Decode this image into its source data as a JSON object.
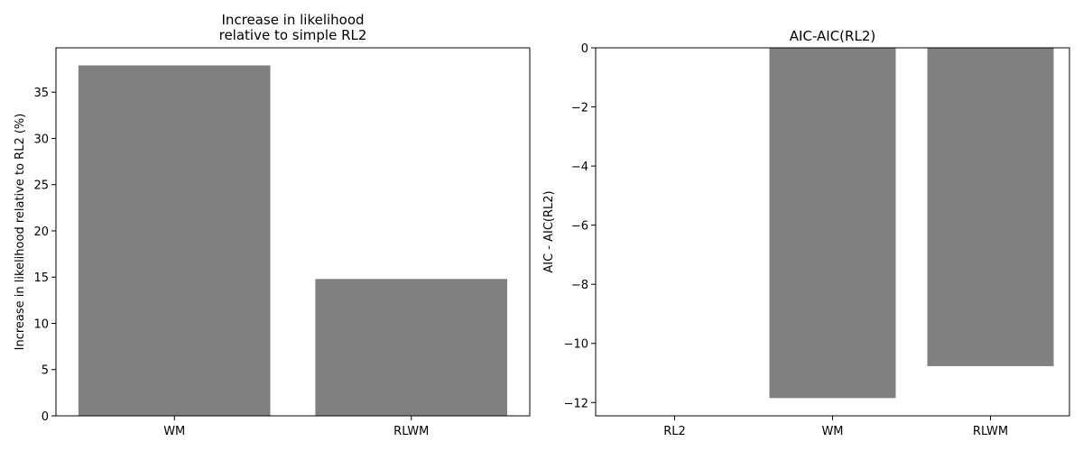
{
  "colors": {
    "bar": "#808080",
    "axis": "#000000",
    "background": "#ffffff"
  },
  "chart_data": [
    {
      "type": "bar",
      "title_lines": [
        "Increase in likelihood",
        "relative to simple RL2"
      ],
      "xlabel": "",
      "ylabel": "Increase in likelihood relative to RL2 (%)",
      "categories": [
        "WM",
        "RLWM"
      ],
      "values": [
        37.9,
        14.8
      ],
      "ylim": [
        0,
        39.8
      ],
      "yticks": [
        0,
        5,
        10,
        15,
        20,
        25,
        30,
        35
      ],
      "ytick_labels": [
        "0",
        "5",
        "10",
        "15",
        "20",
        "25",
        "30",
        "35"
      ],
      "grid": false,
      "legend": "none"
    },
    {
      "type": "bar",
      "title_lines": [
        "AIC-AIC(RL2)"
      ],
      "xlabel": "",
      "ylabel": "AIC - AIC(RL2)",
      "categories": [
        "RL2",
        "WM",
        "RLWM"
      ],
      "values": [
        0,
        -11.85,
        -10.77
      ],
      "ylim": [
        -12.45,
        0
      ],
      "yticks": [
        0,
        -2,
        -4,
        -6,
        -8,
        -10,
        -12
      ],
      "ytick_labels": [
        "0",
        "−2",
        "−4",
        "−6",
        "−8",
        "−10",
        "−12"
      ],
      "grid": false,
      "legend": "none"
    }
  ]
}
